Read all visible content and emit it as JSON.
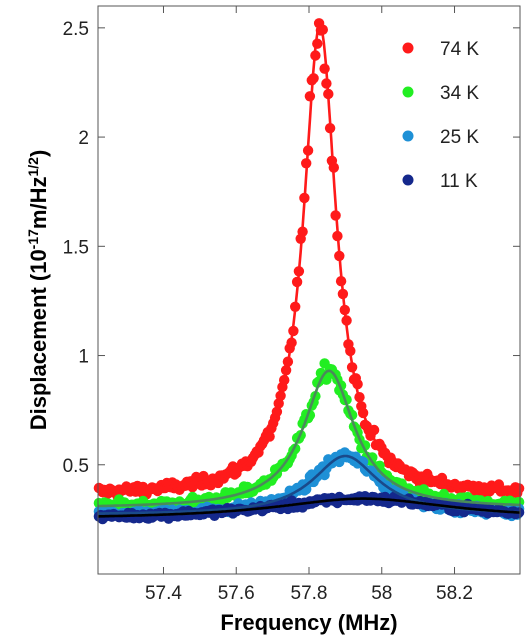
{
  "chart_data": {
    "type": "scatter",
    "xlabel": "Frequency  (MHz)",
    "ylabel_main": "Displacement  (10",
    "ylabel_exp1": "-17",
    "ylabel_mid": "m/Hz",
    "ylabel_exp2": "1/2",
    "ylabel_end": ")",
    "xlim": [
      57.22,
      58.38
    ],
    "ylim": [
      0,
      2.6
    ],
    "xticks": [
      57.4,
      57.6,
      57.8,
      58,
      58.2
    ],
    "xtick_labels": [
      "57.4",
      "57.6",
      "57.8",
      "58",
      "58.2"
    ],
    "yticks": [
      0.5,
      1,
      1.5,
      2,
      2.5
    ],
    "ytick_labels": [
      "0.5",
      "1",
      "1.5",
      "2",
      "2.5"
    ],
    "grid": false,
    "legend_position": "top-right",
    "series": [
      {
        "name": "74 K",
        "color": "#ff1a1a",
        "fit_color": "#ff1a1a",
        "baseline": 0.36,
        "amplitude": 2.15,
        "center": 57.83,
        "gamma": 0.055,
        "noise": 0.025,
        "n_points": 230
      },
      {
        "name": "34 K",
        "color": "#22ee22",
        "fit_color": "#4a8a5a",
        "baseline": 0.3,
        "amplitude": 0.63,
        "center": 57.855,
        "gamma": 0.085,
        "noise": 0.025,
        "n_points": 230
      },
      {
        "name": "25 K",
        "color": "#1e90d6",
        "fit_color": "#1a4a8a",
        "baseline": 0.27,
        "amplitude": 0.27,
        "center": 57.9,
        "gamma": 0.11,
        "noise": 0.022,
        "n_points": 230
      },
      {
        "name": "11 K",
        "color": "#14288c",
        "fit_color": "#000000",
        "baseline": 0.25,
        "amplitude": 0.095,
        "center": 57.95,
        "gamma": 0.3,
        "noise": 0.02,
        "n_points": 230
      }
    ]
  }
}
